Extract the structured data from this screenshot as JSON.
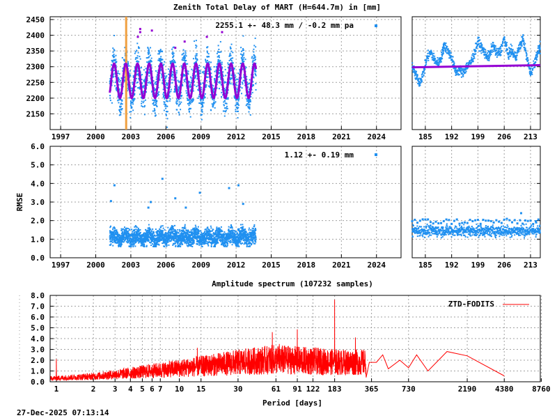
{
  "footer_timestamp": "27-Dec-2025 07:13:14",
  "colors": {
    "data": "#2090f0",
    "model": "#9400d3",
    "event_marker": "#f0a040",
    "spectrum": "#ff0000"
  },
  "chart_data": [
    {
      "id": "ztd",
      "type": "scatter",
      "title": "Zenith Total Delay of MART (H=644.7m) in [mm]",
      "legend_text": "2255.1 +-  48.3 mm / -0.2 mm pa",
      "xlabel": "",
      "ylabel": "",
      "xlim": [
        1996.1,
        2026.1
      ],
      "ylim": [
        2100,
        2459
      ],
      "xticks": [
        "1997",
        "2000",
        "2003",
        "2006",
        "2009",
        "2012",
        "2015",
        "2018",
        "2021",
        "2024"
      ],
      "yticks": [
        "2150",
        "2200",
        "2250",
        "2300",
        "2350",
        "2400",
        "2450"
      ],
      "grid": true,
      "series": {
        "data_span": [
          2001.2,
          2013.7
        ],
        "mean": 2255.1,
        "stddev": 48.3,
        "trend_mm_per_year": -0.2,
        "annual_amplitude": 55,
        "model_mean": 2255,
        "model_amplitude": 55,
        "noise": 40
      },
      "event_marker_year": 2002.6,
      "outliers": [
        [
          2003.8,
          2420
        ],
        [
          2003.8,
          2410
        ],
        [
          2004.8,
          2415
        ],
        [
          2006.8,
          2360
        ],
        [
          2007.6,
          2380
        ],
        [
          2009.5,
          2395
        ],
        [
          2010.8,
          2410
        ],
        [
          2003.6,
          2395
        ]
      ]
    },
    {
      "id": "ztd-recent",
      "type": "scatter",
      "xlim": [
        181.5,
        215.6
      ],
      "ylim": [
        2100,
        2459
      ],
      "xticks": [
        "185",
        "192",
        "199",
        "206",
        "213"
      ],
      "grid": true,
      "points": [
        [
          181.5,
          2300
        ],
        [
          182.5,
          2270
        ],
        [
          183.5,
          2250
        ],
        [
          184.5,
          2280
        ],
        [
          185.5,
          2330
        ],
        [
          186.5,
          2345
        ],
        [
          187.5,
          2320
        ],
        [
          188.5,
          2310
        ],
        [
          189.5,
          2340
        ],
        [
          190,
          2370
        ],
        [
          191,
          2350
        ],
        [
          192,
          2330
        ],
        [
          193,
          2285
        ],
        [
          194,
          2290
        ],
        [
          195,
          2280
        ],
        [
          196,
          2300
        ],
        [
          197,
          2310
        ],
        [
          198,
          2340
        ],
        [
          199,
          2380
        ],
        [
          200,
          2360
        ],
        [
          201,
          2340
        ],
        [
          202,
          2330
        ],
        [
          203,
          2370
        ],
        [
          204,
          2340
        ],
        [
          205,
          2350
        ],
        [
          206,
          2390
        ],
        [
          207,
          2340
        ],
        [
          208,
          2350
        ],
        [
          209,
          2330
        ],
        [
          210,
          2360
        ],
        [
          211,
          2390
        ],
        [
          212,
          2330
        ],
        [
          213,
          2280
        ],
        [
          214,
          2310
        ],
        [
          215,
          2350
        ],
        [
          215.6,
          2360
        ]
      ],
      "model_level": [
        2298,
        2305
      ]
    },
    {
      "id": "rmse",
      "type": "scatter",
      "legend_text": "1.12 +-  0.19 mm",
      "ylabel": "RMSE",
      "xlim": [
        1996.1,
        2026.1
      ],
      "ylim": [
        0,
        6
      ],
      "xticks": [
        "1997",
        "2000",
        "2003",
        "2006",
        "2009",
        "2012",
        "2015",
        "2018",
        "2021",
        "2024"
      ],
      "yticks": [
        "0.0",
        "1.0",
        "2.0",
        "3.0",
        "4.0",
        "5.0",
        "6.0"
      ],
      "grid": true,
      "series": {
        "data_span": [
          2001.2,
          2013.7
        ],
        "mean": 1.12,
        "stddev": 0.19
      },
      "outliers": [
        [
          2001.3,
          3.05
        ],
        [
          2001.6,
          3.9
        ],
        [
          2004.7,
          3.0
        ],
        [
          2005.7,
          4.25
        ],
        [
          2006.8,
          3.2
        ],
        [
          2008.9,
          3.5
        ],
        [
          2011.4,
          3.75
        ],
        [
          2012.2,
          3.9
        ],
        [
          2012.6,
          2.9
        ],
        [
          2004.5,
          2.7
        ],
        [
          2007.7,
          2.7
        ]
      ]
    },
    {
      "id": "rmse-recent",
      "type": "scatter",
      "xlim": [
        181.5,
        215.6
      ],
      "ylim": [
        0,
        6
      ],
      "xticks": [
        "185",
        "192",
        "199",
        "206",
        "213"
      ],
      "grid": true,
      "series": {
        "mean": 1.45,
        "spread": 0.25
      },
      "outliers": [
        [
          210.5,
          2.4
        ],
        [
          214.5,
          1.9
        ]
      ]
    },
    {
      "id": "spectrum",
      "type": "line",
      "title": "Amplitude spectrum (107232 samples)",
      "xlabel": "Period [days]",
      "xscale": "log",
      "xlim": [
        0.89,
        8600
      ],
      "ylim": [
        0,
        8
      ],
      "xticks": [
        "1",
        "2",
        "3",
        "4",
        "5",
        "6",
        "7",
        "10",
        "15",
        "30",
        "61",
        "91",
        "122",
        "183",
        "365",
        "730",
        "2190",
        "4380",
        "8760"
      ],
      "yticks": [
        "0.0",
        "1.0",
        "2.0",
        "3.0",
        "4.0",
        "5.0",
        "6.0",
        "7.0",
        "8.0"
      ],
      "grid": true,
      "legend": {
        "label": "ZTD-FODITS",
        "position": "top-right"
      },
      "noise_envelope": [
        [
          0.9,
          0.35
        ],
        [
          2,
          0.55
        ],
        [
          4,
          0.9
        ],
        [
          7,
          1.2
        ],
        [
          15,
          1.6
        ],
        [
          30,
          2.0
        ],
        [
          60,
          2.3
        ],
        [
          200,
          2.0
        ]
      ],
      "peaks": [
        [
          1,
          2.1
        ],
        [
          14,
          3.15
        ],
        [
          57,
          4.6
        ],
        [
          65,
          3.5
        ],
        [
          91,
          4.85
        ],
        [
          140,
          2.7
        ],
        [
          183,
          7.6
        ],
        [
          270,
          4.1
        ]
      ],
      "tail": [
        [
          330,
          0.4
        ],
        [
          350,
          1.8
        ],
        [
          400,
          1.8
        ],
        [
          450,
          2.5
        ],
        [
          500,
          1.2
        ],
        [
          620,
          2.0
        ],
        [
          730,
          1.3
        ],
        [
          850,
          2.5
        ],
        [
          1050,
          1.0
        ],
        [
          1500,
          2.8
        ],
        [
          2190,
          2.4
        ],
        [
          4380,
          0.55
        ]
      ]
    }
  ]
}
